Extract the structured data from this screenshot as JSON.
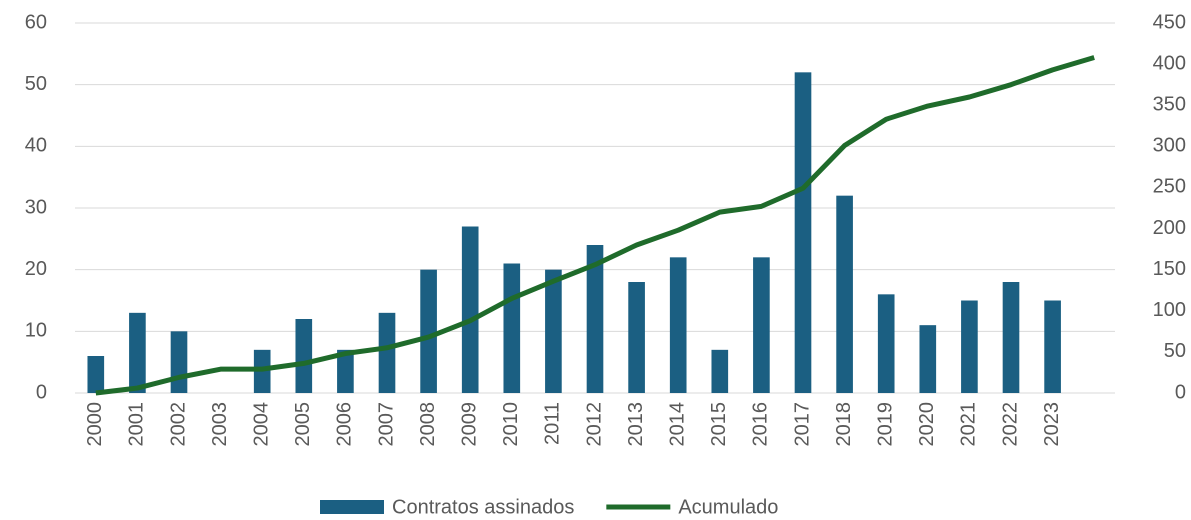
{
  "chart_data": {
    "type": "bar_line",
    "categories": [
      "2000",
      "2001",
      "2002",
      "2003",
      "2004",
      "2005",
      "2006",
      "2007",
      "2008",
      "2009",
      "2010",
      "2011",
      "2012",
      "2013",
      "2014",
      "2015",
      "2016",
      "2017",
      "2018",
      "2019",
      "2020",
      "2021",
      "2022",
      "2023",
      null
    ],
    "series": [
      {
        "name": "Contratos assinados",
        "type": "bar",
        "color": "#1b5f82",
        "values": [
          6,
          13,
          10,
          0,
          7,
          12,
          7,
          13,
          20,
          27,
          21,
          20,
          24,
          18,
          22,
          7,
          22,
          52,
          32,
          16,
          11,
          15,
          18,
          15,
          null
        ]
      },
      {
        "name": "Acumulado",
        "type": "line",
        "axis": "y2",
        "color": "#1f6b2b",
        "values": [
          0,
          6,
          19,
          29,
          29,
          36,
          48,
          55,
          68,
          88,
          115,
          136,
          156,
          180,
          198,
          220,
          227,
          249,
          301,
          333,
          349,
          360,
          375,
          393,
          408
        ]
      }
    ],
    "ylim": [
      0,
      60
    ],
    "yticks": [
      0,
      10,
      20,
      30,
      40,
      50,
      60
    ],
    "y2lim": [
      0,
      450
    ],
    "y2ticks": [
      0,
      50,
      100,
      150,
      200,
      250,
      300,
      350,
      400,
      450
    ],
    "grid": true,
    "legend": "bottom"
  }
}
